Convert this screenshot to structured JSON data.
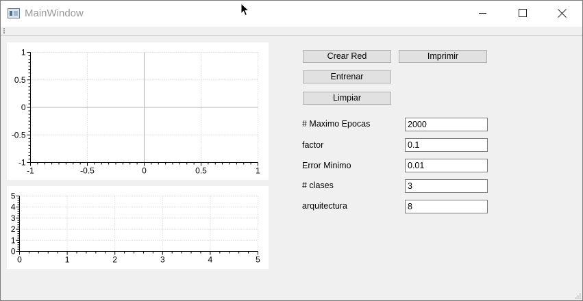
{
  "window": {
    "title": "MainWindow"
  },
  "plot_top": {
    "x_range": [
      -1,
      1
    ],
    "y_range": [
      -1,
      1
    ],
    "x_ticks": [
      "-1",
      "-0.5",
      "0",
      "0.5",
      "1"
    ],
    "y_ticks": [
      "1",
      "0.5",
      "0",
      "-0.5",
      "-1"
    ],
    "grid": true
  },
  "plot_bottom": {
    "x_range": [
      0,
      5
    ],
    "y_range": [
      0,
      5
    ],
    "x_ticks": [
      "0",
      "1",
      "2",
      "3",
      "4",
      "5"
    ],
    "y_ticks": [
      "5",
      "4",
      "3",
      "2",
      "1",
      "0"
    ],
    "grid": true
  },
  "buttons": {
    "crear_red": "Crear Red",
    "imprimir": "Imprimir",
    "entrenar": "Entrenar",
    "limpiar": "Limpiar"
  },
  "fields": [
    {
      "label": "# Maximo Epocas",
      "value": "2000"
    },
    {
      "label": "factor",
      "value": "0.1"
    },
    {
      "label": "Error Minimo",
      "value": "0.01"
    },
    {
      "label": "# clases",
      "value": "3"
    },
    {
      "label": "arquitectura",
      "value": "8"
    }
  ]
}
